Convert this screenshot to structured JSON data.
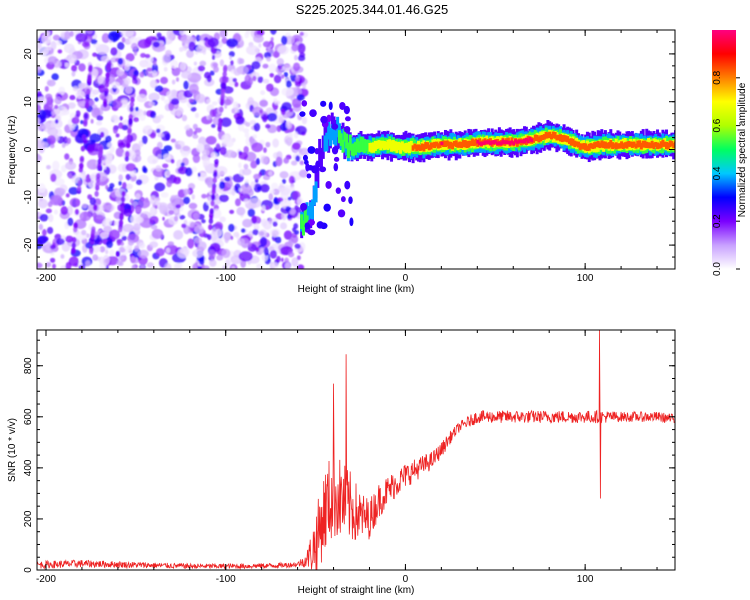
{
  "title": "S225.2025.344.01.46.G25",
  "chart_data": [
    {
      "type": "heatmap",
      "xlabel": "Height of straight line (km)",
      "ylabel": "Frequency (Hz)",
      "xlim": [
        -205,
        150
      ],
      "ylim": [
        -25,
        25
      ],
      "xticks": [
        -200,
        -100,
        0,
        100
      ],
      "yticks": [
        -20,
        -10,
        0,
        10,
        20
      ],
      "colorbar": {
        "label": "Normalized spectral amplitude",
        "range": [
          0,
          1
        ],
        "ticks": [
          "0.0",
          "0.2",
          "0.4",
          "0.6",
          "0.8"
        ],
        "colors": [
          "#ffffff",
          "#c8a0ff",
          "#7a00ff",
          "#0000ff",
          "#00c8ff",
          "#00ff60",
          "#b0ff00",
          "#ffff00",
          "#ff8000",
          "#ff0000",
          "#ff0080"
        ]
      },
      "noise_region": {
        "x_from": -205,
        "x_to": -56,
        "freq_from": -25,
        "freq_to": 25
      },
      "ridge": {
        "x": [
          -58,
          -55,
          -52,
          -50,
          -48,
          -45,
          -40,
          -35,
          -30,
          -25,
          -20,
          -15,
          -10,
          -5,
          0,
          10,
          20,
          30,
          40,
          50,
          60,
          70,
          80,
          90,
          95,
          100,
          110,
          120,
          130,
          140,
          150
        ],
        "freq": [
          -16,
          -14,
          -13,
          -8,
          -2,
          2,
          4,
          2,
          0,
          1,
          0.5,
          1,
          1,
          0.5,
          0.5,
          0.5,
          1,
          1,
          1.5,
          1.5,
          1.5,
          2,
          3,
          2,
          1,
          0.5,
          1,
          1,
          1,
          1,
          1
        ],
        "amplitude": [
          0.45,
          0.45,
          0.4,
          0.3,
          0.25,
          0.3,
          0.4,
          0.5,
          0.55,
          0.55,
          0.6,
          0.65,
          0.65,
          0.6,
          0.7,
          0.85,
          0.9,
          0.85,
          0.9,
          0.9,
          0.9,
          0.9,
          0.85,
          0.85,
          0.8,
          0.8,
          0.85,
          0.85,
          0.85,
          0.85,
          0.85
        ]
      }
    },
    {
      "type": "line",
      "xlabel": "Height of straight line (km)",
      "ylabel": "SNR (10 * v/v)",
      "xlim": [
        -205,
        150
      ],
      "ylim": [
        0,
        940
      ],
      "xticks": [
        -200,
        -100,
        0,
        100
      ],
      "yticks": [
        0,
        200,
        400,
        600,
        800
      ],
      "series": [
        {
          "color": "#ee2222",
          "x": [
            -205,
            -180,
            -150,
            -120,
            -90,
            -70,
            -60,
            -55,
            -50,
            -45,
            -40,
            -35,
            -30,
            -25,
            -20,
            -15,
            -10,
            -5,
            0,
            5,
            10,
            15,
            20,
            25,
            30,
            40,
            50,
            60,
            70,
            80,
            90,
            100,
            105,
            110,
            120,
            130,
            140,
            150
          ],
          "mean": [
            20,
            25,
            20,
            15,
            15,
            18,
            22,
            40,
            100,
            230,
            300,
            270,
            240,
            210,
            200,
            270,
            310,
            340,
            370,
            390,
            410,
            430,
            470,
            520,
            560,
            600,
            600,
            600,
            600,
            600,
            600,
            600,
            600,
            600,
            600,
            600,
            600,
            590
          ],
          "noise": [
            15,
            15,
            12,
            10,
            10,
            10,
            10,
            30,
            130,
            170,
            180,
            160,
            140,
            100,
            80,
            70,
            60,
            55,
            50,
            45,
            40,
            35,
            30,
            25,
            20,
            25,
            25,
            25,
            25,
            25,
            25,
            25,
            25,
            25,
            20,
            20,
            20,
            20
          ],
          "spikes": [
            {
              "x": -33,
              "y": 845
            },
            {
              "x": -40,
              "y": 730
            },
            {
              "x": 108,
              "y": 940
            },
            {
              "x": 108.6,
              "y": 280
            }
          ]
        }
      ]
    }
  ]
}
